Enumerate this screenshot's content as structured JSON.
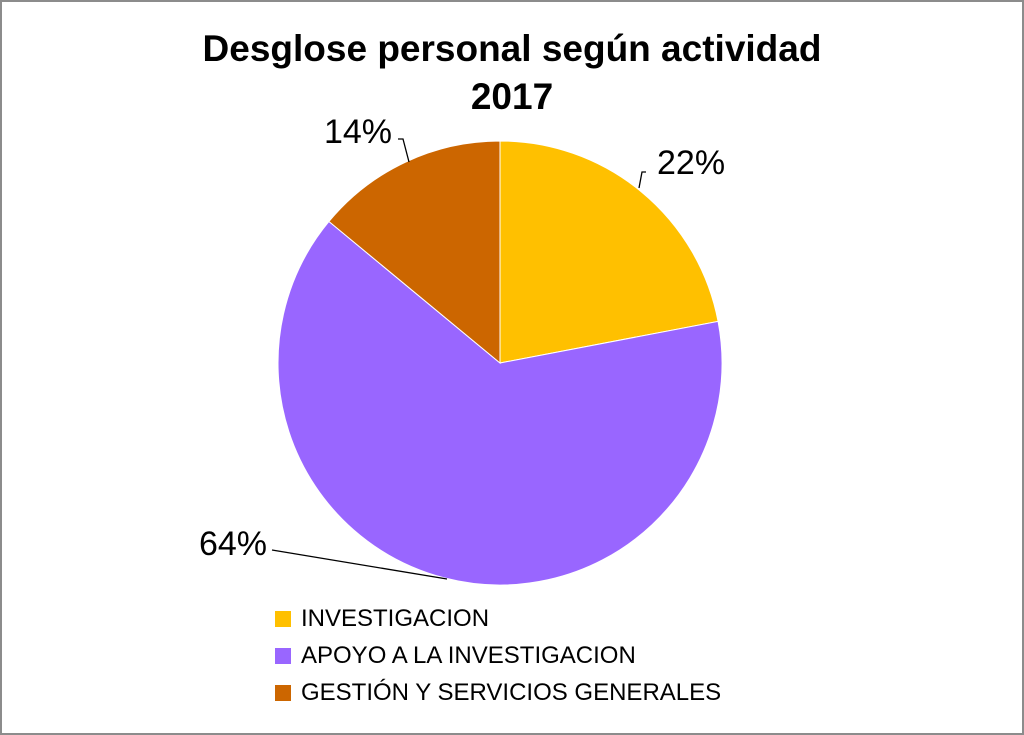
{
  "chart_data": {
    "type": "pie",
    "title": "Desglose personal según actividad",
    "subtitle": "2017",
    "slices": [
      {
        "label": "INVESTIGACION",
        "value": 22,
        "display": "22%",
        "color": "#FFC000"
      },
      {
        "label": "APOYO A LA INVESTIGACION",
        "value": 64,
        "display": "64%",
        "color": "#9966FF"
      },
      {
        "label": "GESTIÓN Y SERVICIOS GENERALES",
        "value": 14,
        "display": "14%",
        "color": "#CC6600"
      }
    ],
    "legend_position": "bottom",
    "start_angle": "12 o'clock",
    "direction": "clockwise"
  }
}
